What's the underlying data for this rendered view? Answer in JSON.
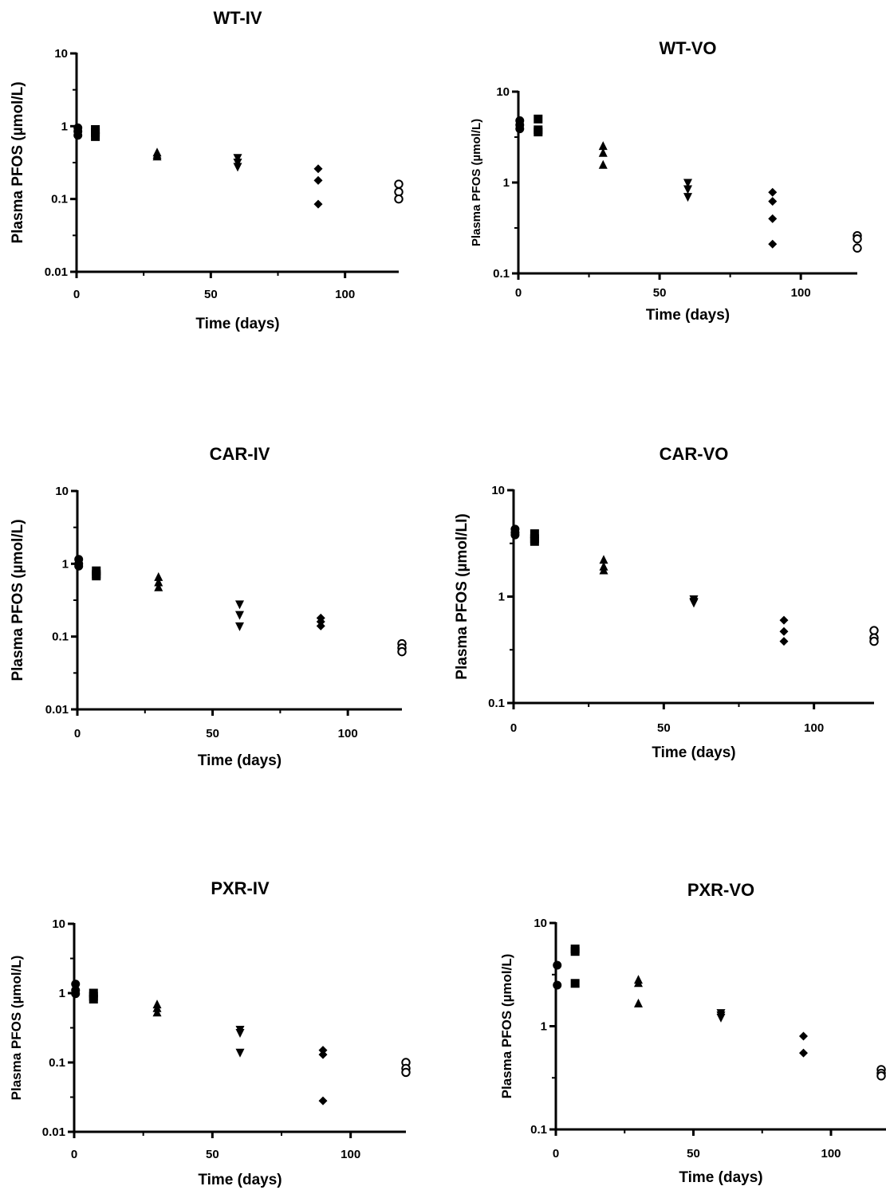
{
  "chart_data": [
    {
      "type": "scatter",
      "title": "WT-IV",
      "xlabel": "Time (days)",
      "ylabel": "Plasma PFOS (µmol/L)",
      "xlim": [
        0,
        120
      ],
      "ylim": [
        0.01,
        10
      ],
      "yscale": "log",
      "xticks": [
        "0",
        "50",
        "100"
      ],
      "yticks": [
        "0.01",
        "0.1",
        "1",
        "10"
      ],
      "series": [
        {
          "marker": "circle",
          "points": [
            [
              0.5,
              0.95
            ],
            [
              0.5,
              0.85
            ],
            [
              0.5,
              0.75
            ]
          ]
        },
        {
          "marker": "square",
          "points": [
            [
              7,
              0.9
            ],
            [
              7,
              0.82
            ],
            [
              7,
              0.72
            ]
          ]
        },
        {
          "marker": "triangle-up",
          "points": [
            [
              30,
              0.43
            ],
            [
              30,
              0.4
            ],
            [
              30,
              0.38
            ]
          ]
        },
        {
          "marker": "triangle-down",
          "points": [
            [
              60,
              0.37
            ],
            [
              60,
              0.32
            ],
            [
              60,
              0.28
            ]
          ]
        },
        {
          "marker": "diamond",
          "points": [
            [
              90,
              0.26
            ],
            [
              90,
              0.18
            ],
            [
              90,
              0.085
            ]
          ]
        },
        {
          "marker": "open-circle",
          "points": [
            [
              120,
              0.16
            ],
            [
              120,
              0.125
            ],
            [
              120,
              0.1
            ]
          ]
        }
      ]
    },
    {
      "type": "scatter",
      "title": "WT-VO",
      "xlabel": "Time (days)",
      "ylabel": "Plasma PFOS (µmol/L)",
      "xlim": [
        0,
        120
      ],
      "ylim": [
        0.1,
        10
      ],
      "yscale": "log",
      "xticks": [
        "0",
        "50",
        "100"
      ],
      "yticks": [
        "0.1",
        "1",
        "10"
      ],
      "series": [
        {
          "marker": "circle",
          "points": [
            [
              0.5,
              4.8
            ],
            [
              0.5,
              4.3
            ],
            [
              0.5,
              3.9
            ]
          ]
        },
        {
          "marker": "square",
          "points": [
            [
              7,
              5.0
            ],
            [
              7,
              3.8
            ],
            [
              7,
              3.6
            ]
          ]
        },
        {
          "marker": "triangle-up",
          "points": [
            [
              30,
              2.5
            ],
            [
              30,
              2.1
            ],
            [
              30,
              1.55
            ]
          ]
        },
        {
          "marker": "triangle-down",
          "points": [
            [
              60,
              1.0
            ],
            [
              60,
              0.85
            ],
            [
              60,
              0.7
            ]
          ]
        },
        {
          "marker": "diamond",
          "points": [
            [
              90,
              0.78
            ],
            [
              90,
              0.62
            ],
            [
              90,
              0.4
            ],
            [
              90,
              0.21
            ]
          ]
        },
        {
          "marker": "open-circle",
          "points": [
            [
              120,
              0.26
            ],
            [
              120,
              0.24
            ],
            [
              120,
              0.19
            ]
          ]
        }
      ]
    },
    {
      "type": "scatter",
      "title": "CAR-IV",
      "xlabel": "Time (days)",
      "ylabel": "Plasma PFOS (µmol/L)",
      "xlim": [
        0,
        120
      ],
      "ylim": [
        0.01,
        10
      ],
      "yscale": "log",
      "xticks": [
        "0",
        "50",
        "100"
      ],
      "yticks": [
        "0.01",
        "0.1",
        "1",
        "10"
      ],
      "series": [
        {
          "marker": "circle",
          "points": [
            [
              0.5,
              1.15
            ],
            [
              0.5,
              1.0
            ],
            [
              0.5,
              0.93
            ]
          ]
        },
        {
          "marker": "square",
          "points": [
            [
              7,
              0.8
            ],
            [
              7,
              0.72
            ],
            [
              7,
              0.68
            ]
          ]
        },
        {
          "marker": "triangle-up",
          "points": [
            [
              30,
              0.65
            ],
            [
              30,
              0.55
            ],
            [
              30,
              0.47
            ]
          ]
        },
        {
          "marker": "triangle-down",
          "points": [
            [
              60,
              0.28
            ],
            [
              60,
              0.2
            ],
            [
              60,
              0.14
            ]
          ]
        },
        {
          "marker": "diamond",
          "points": [
            [
              90,
              0.18
            ],
            [
              90,
              0.16
            ],
            [
              90,
              0.14
            ]
          ]
        },
        {
          "marker": "open-circle",
          "points": [
            [
              120,
              0.08
            ],
            [
              120,
              0.07
            ],
            [
              120,
              0.062
            ]
          ]
        }
      ]
    },
    {
      "type": "scatter",
      "title": "CAR-VO",
      "xlabel": "Time (days)",
      "ylabel": "Plasma PFOS (µmol/LI)",
      "xlim": [
        0,
        120
      ],
      "ylim": [
        0.1,
        10
      ],
      "yscale": "log",
      "xticks": [
        "0",
        "50",
        "100"
      ],
      "yticks": [
        "0.1",
        "1",
        "10"
      ],
      "series": [
        {
          "marker": "circle",
          "points": [
            [
              0.5,
              4.3
            ],
            [
              0.5,
              4.0
            ],
            [
              0.5,
              3.8
            ]
          ]
        },
        {
          "marker": "square",
          "points": [
            [
              7,
              3.9
            ],
            [
              7,
              3.5
            ],
            [
              7,
              3.3
            ]
          ]
        },
        {
          "marker": "triangle-up",
          "points": [
            [
              30,
              2.2
            ],
            [
              30,
              1.9
            ],
            [
              30,
              1.75
            ]
          ]
        },
        {
          "marker": "triangle-down",
          "points": [
            [
              60,
              0.95
            ],
            [
              60,
              0.9
            ],
            [
              60,
              0.88
            ]
          ]
        },
        {
          "marker": "diamond",
          "points": [
            [
              90,
              0.6
            ],
            [
              90,
              0.47
            ],
            [
              90,
              0.38
            ]
          ]
        },
        {
          "marker": "open-circle",
          "points": [
            [
              120,
              0.48
            ],
            [
              120,
              0.41
            ],
            [
              120,
              0.38
            ]
          ]
        }
      ]
    },
    {
      "type": "scatter",
      "title": "PXR-IV",
      "xlabel": "Time (days)",
      "ylabel": "Plasma PFOS (µmol/L)",
      "xlim": [
        0,
        120
      ],
      "ylim": [
        0.01,
        10
      ],
      "yscale": "log",
      "xticks": [
        "0",
        "50",
        "100"
      ],
      "yticks": [
        "0.01",
        "0.1",
        "1",
        "10"
      ],
      "series": [
        {
          "marker": "circle",
          "points": [
            [
              0.5,
              1.35
            ],
            [
              0.5,
              1.1
            ],
            [
              0.5,
              0.98
            ]
          ]
        },
        {
          "marker": "square",
          "points": [
            [
              7,
              1.0
            ],
            [
              7,
              0.9
            ],
            [
              7,
              0.82
            ]
          ]
        },
        {
          "marker": "triangle-up",
          "points": [
            [
              30,
              0.68
            ],
            [
              30,
              0.6
            ],
            [
              30,
              0.52
            ]
          ]
        },
        {
          "marker": "triangle-down",
          "points": [
            [
              60,
              0.3
            ],
            [
              60,
              0.27
            ],
            [
              60,
              0.14
            ]
          ]
        },
        {
          "marker": "diamond",
          "points": [
            [
              90,
              0.15
            ],
            [
              90,
              0.13
            ],
            [
              90,
              0.028
            ]
          ]
        },
        {
          "marker": "open-circle",
          "points": [
            [
              120,
              0.1
            ],
            [
              120,
              0.082
            ],
            [
              120,
              0.072
            ]
          ]
        }
      ]
    },
    {
      "type": "scatter",
      "title": "PXR-VO",
      "xlabel": "Time (days)",
      "ylabel": "Plasma PFOS (µmol/L)",
      "xlim": [
        0,
        120
      ],
      "ylim": [
        0.1,
        10
      ],
      "yscale": "log",
      "xticks": [
        "0",
        "50",
        "100"
      ],
      "yticks": [
        "0.1",
        "1",
        "10"
      ],
      "series": [
        {
          "marker": "circle",
          "points": [
            [
              0.5,
              3.9
            ],
            [
              0.5,
              2.5
            ]
          ]
        },
        {
          "marker": "square",
          "points": [
            [
              7,
              5.6
            ],
            [
              7,
              5.3
            ],
            [
              7,
              2.6
            ]
          ]
        },
        {
          "marker": "triangle-up",
          "points": [
            [
              30,
              2.8
            ],
            [
              30,
              2.6
            ],
            [
              30,
              1.65
            ]
          ]
        },
        {
          "marker": "triangle-down",
          "points": [
            [
              60,
              1.35
            ],
            [
              60,
              1.28
            ],
            [
              60,
              1.22
            ]
          ]
        },
        {
          "marker": "diamond",
          "points": [
            [
              90,
              0.8
            ],
            [
              90,
              0.55
            ]
          ]
        },
        {
          "marker": "open-circle",
          "points": [
            [
              120,
              0.38
            ],
            [
              120,
              0.35
            ],
            [
              120,
              0.33
            ]
          ]
        }
      ]
    }
  ]
}
